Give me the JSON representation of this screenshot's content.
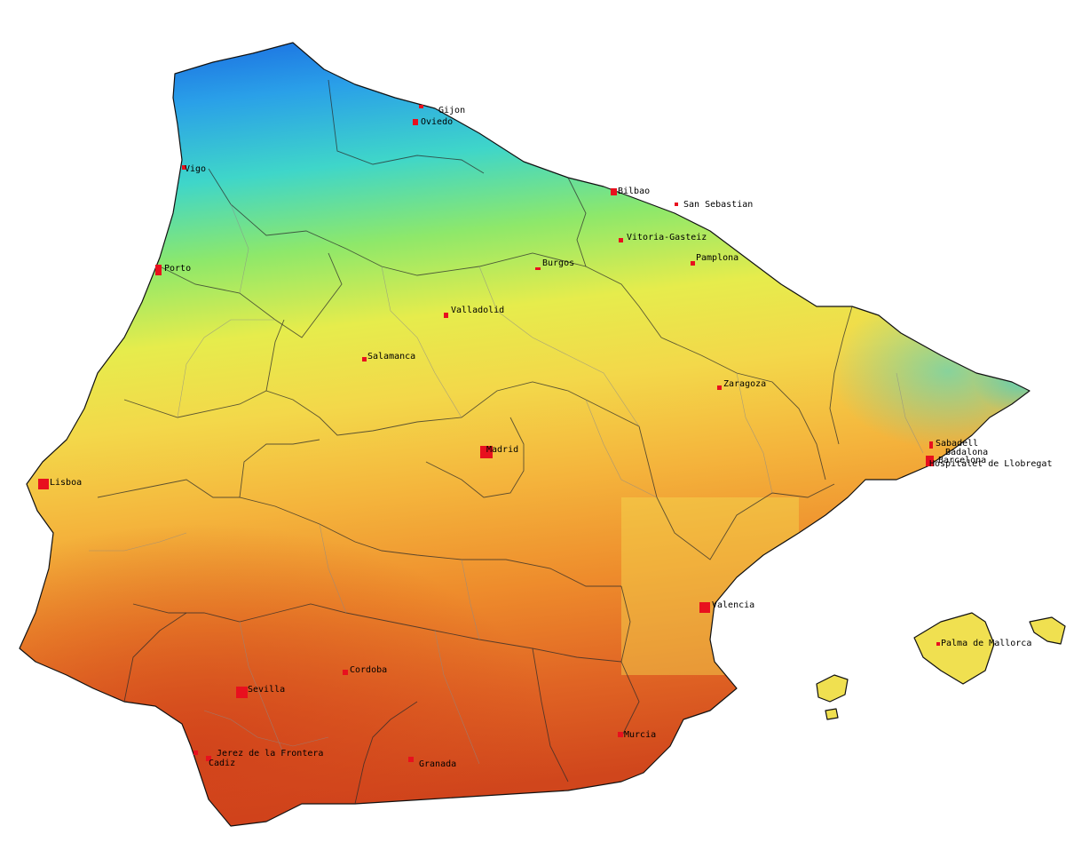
{
  "map": {
    "colors": {
      "north": "#1a6fe0",
      "cyan": "#3fd6c9",
      "green": "#8ee86a",
      "yellow": "#f3e04a",
      "orange": "#f0a030",
      "south": "#d2461e",
      "city": "#e8101e"
    },
    "cities": [
      {
        "id": "gijon",
        "name": "Gijon"
      },
      {
        "id": "oviedo",
        "name": "Oviedo"
      },
      {
        "id": "vigo",
        "name": "Vigo"
      },
      {
        "id": "bilbao",
        "name": "Bilbao"
      },
      {
        "id": "san-sebastian",
        "name": "San Sebastian"
      },
      {
        "id": "vitoria",
        "name": "Vitoria-Gasteiz"
      },
      {
        "id": "pamplona",
        "name": "Pamplona"
      },
      {
        "id": "burgos",
        "name": "Burgos"
      },
      {
        "id": "porto",
        "name": "Porto"
      },
      {
        "id": "valladolid",
        "name": "Valladolid"
      },
      {
        "id": "salamanca",
        "name": "Salamanca"
      },
      {
        "id": "zaragoza",
        "name": "Zaragoza"
      },
      {
        "id": "sabadell",
        "name": "Sabadell"
      },
      {
        "id": "badalona",
        "name": "Badalona"
      },
      {
        "id": "barcelona",
        "name": "Barcelona"
      },
      {
        "id": "hospitalet",
        "name": "Hospitalet de Llobregat"
      },
      {
        "id": "madrid",
        "name": "Madrid"
      },
      {
        "id": "lisboa",
        "name": "Lisboa"
      },
      {
        "id": "valencia",
        "name": "Valencia"
      },
      {
        "id": "palma",
        "name": "Palma de Mallorca"
      },
      {
        "id": "cordoba",
        "name": "Cordoba"
      },
      {
        "id": "sevilla",
        "name": "Sevilla"
      },
      {
        "id": "murcia",
        "name": "Murcia"
      },
      {
        "id": "jerez",
        "name": "Jerez de la Frontera"
      },
      {
        "id": "cadiz",
        "name": "Cadiz"
      },
      {
        "id": "granada",
        "name": "Granada"
      }
    ]
  }
}
